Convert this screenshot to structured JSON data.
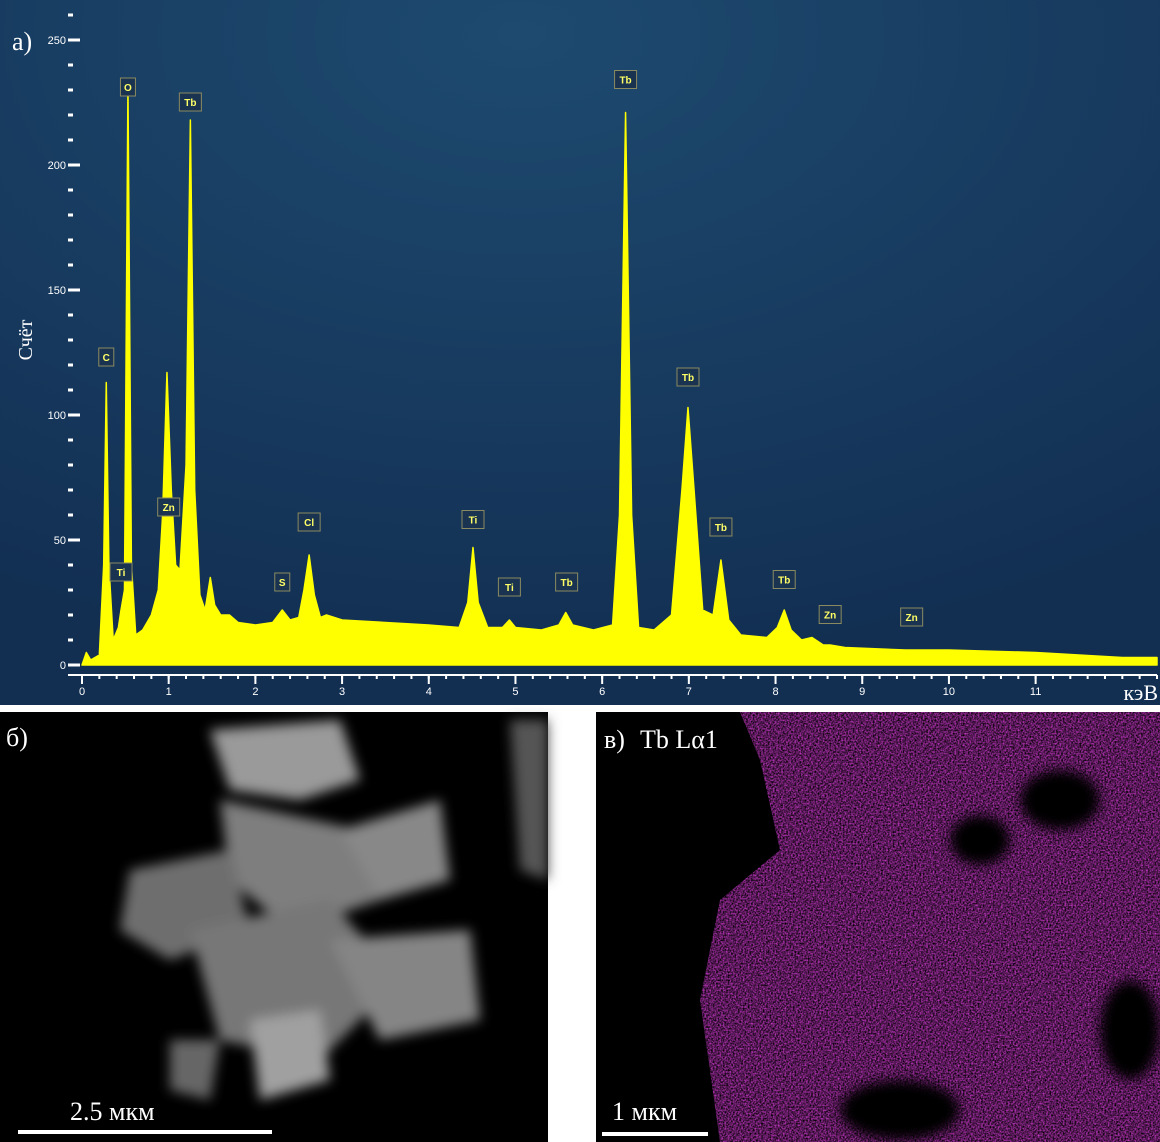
{
  "chart_data": {
    "type": "area",
    "title": "а)",
    "ylabel": "Счёт",
    "xlabel": "кэВ",
    "color": "#ffff00",
    "xlim": [
      0,
      12.4
    ],
    "ylim": [
      -4,
      262
    ],
    "xticks": [
      0,
      1,
      2,
      3,
      4,
      5,
      6,
      7,
      8,
      9,
      10,
      11
    ],
    "yticks": [
      0,
      50,
      100,
      150,
      200,
      250
    ],
    "x_minor_step": 0.2,
    "y_minor_step": 10,
    "x": [
      0,
      0.05,
      0.1,
      0.2,
      0.25,
      0.28,
      0.31,
      0.36,
      0.42,
      0.45,
      0.49,
      0.53,
      0.57,
      0.62,
      0.7,
      0.8,
      0.88,
      0.93,
      0.98,
      1.03,
      1.08,
      1.13,
      1.2,
      1.25,
      1.3,
      1.36,
      1.42,
      1.48,
      1.53,
      1.6,
      1.7,
      1.8,
      2.0,
      2.2,
      2.31,
      2.4,
      2.5,
      2.56,
      2.62,
      2.68,
      2.75,
      2.82,
      3.0,
      3.5,
      4.0,
      4.35,
      4.45,
      4.51,
      4.57,
      4.68,
      4.85,
      4.93,
      5.0,
      5.3,
      5.5,
      5.58,
      5.66,
      5.9,
      6.12,
      6.2,
      6.27,
      6.34,
      6.42,
      6.6,
      6.8,
      6.92,
      6.99,
      7.06,
      7.16,
      7.28,
      7.37,
      7.46,
      7.6,
      7.9,
      8.02,
      8.1,
      8.18,
      8.3,
      8.42,
      8.55,
      8.63,
      8.8,
      9.5,
      10,
      11,
      12,
      12.4
    ],
    "values": [
      0,
      5,
      2,
      4,
      40,
      113,
      40,
      10,
      15,
      22,
      30,
      232,
      40,
      12,
      14,
      20,
      30,
      60,
      117,
      70,
      40,
      38,
      80,
      218,
      70,
      28,
      22,
      35,
      24,
      20,
      20,
      17,
      16,
      17,
      22,
      18,
      19,
      30,
      44,
      28,
      19,
      20,
      18,
      17,
      16,
      15,
      25,
      47,
      25,
      15,
      15,
      18,
      15,
      14,
      16,
      21,
      16,
      14,
      16,
      60,
      221,
      60,
      15,
      14,
      20,
      70,
      103,
      70,
      22,
      20,
      42,
      18,
      12,
      11,
      15,
      22,
      14,
      10,
      11,
      8,
      8,
      7,
      6,
      6,
      5,
      3,
      3
    ],
    "peaks": [
      {
        "label": "C",
        "x": 0.28,
        "y": 118
      },
      {
        "label": "Ti",
        "x": 0.45,
        "y": 32
      },
      {
        "label": "O",
        "x": 0.53,
        "y": 226
      },
      {
        "label": "Zn",
        "x": 1.0,
        "y": 58
      },
      {
        "label": "Tb",
        "x": 1.25,
        "y": 220
      },
      {
        "label": "S",
        "x": 2.31,
        "y": 28
      },
      {
        "label": "Cl",
        "x": 2.62,
        "y": 52
      },
      {
        "label": "Ti",
        "x": 4.51,
        "y": 53
      },
      {
        "label": "Ti",
        "x": 4.93,
        "y": 26
      },
      {
        "label": "Tb",
        "x": 5.59,
        "y": 28
      },
      {
        "label": "Tb",
        "x": 6.27,
        "y": 229
      },
      {
        "label": "Tb",
        "x": 6.99,
        "y": 110
      },
      {
        "label": "Tb",
        "x": 7.37,
        "y": 50
      },
      {
        "label": "Tb",
        "x": 8.1,
        "y": 29
      },
      {
        "label": "Zn",
        "x": 8.63,
        "y": 15
      },
      {
        "label": "Zn",
        "x": 9.57,
        "y": 14
      }
    ]
  },
  "micrograph": {
    "label": "б)",
    "scale_bar": "2.5 мкм"
  },
  "map": {
    "label": "в)",
    "element": "Tb Lα1",
    "scale_bar": "1 мкм"
  }
}
